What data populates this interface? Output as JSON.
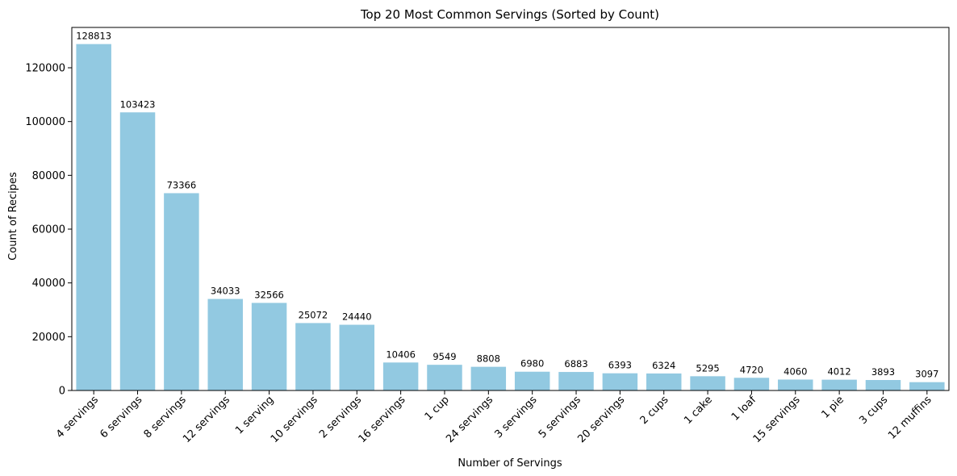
{
  "chart_data": {
    "type": "bar",
    "title": "Top 20 Most Common Servings (Sorted by Count)",
    "xlabel": "Number of Servings",
    "ylabel": "Count of Recipes",
    "categories": [
      "4 servings",
      "6 servings",
      "8 servings",
      "12 servings",
      "1 serving",
      "10 servings",
      "2 servings",
      "16 servings",
      "1 cup",
      "24 servings",
      "3 servings",
      "5 servings",
      "20 servings",
      "2 cups",
      "1 cake",
      "1 loaf",
      "15 servings",
      "1 pie",
      "3 cups",
      "12 muffins"
    ],
    "values": [
      128813,
      103423,
      73366,
      34033,
      32566,
      25072,
      24440,
      10406,
      9549,
      8808,
      6980,
      6883,
      6393,
      6324,
      5295,
      4720,
      4060,
      4012,
      3893,
      3097
    ],
    "ylim": [
      0,
      135000
    ],
    "yticks": [
      0,
      20000,
      40000,
      60000,
      80000,
      100000,
      120000
    ],
    "grid": false,
    "legend": "none",
    "bar_color": "#92c9e1"
  }
}
